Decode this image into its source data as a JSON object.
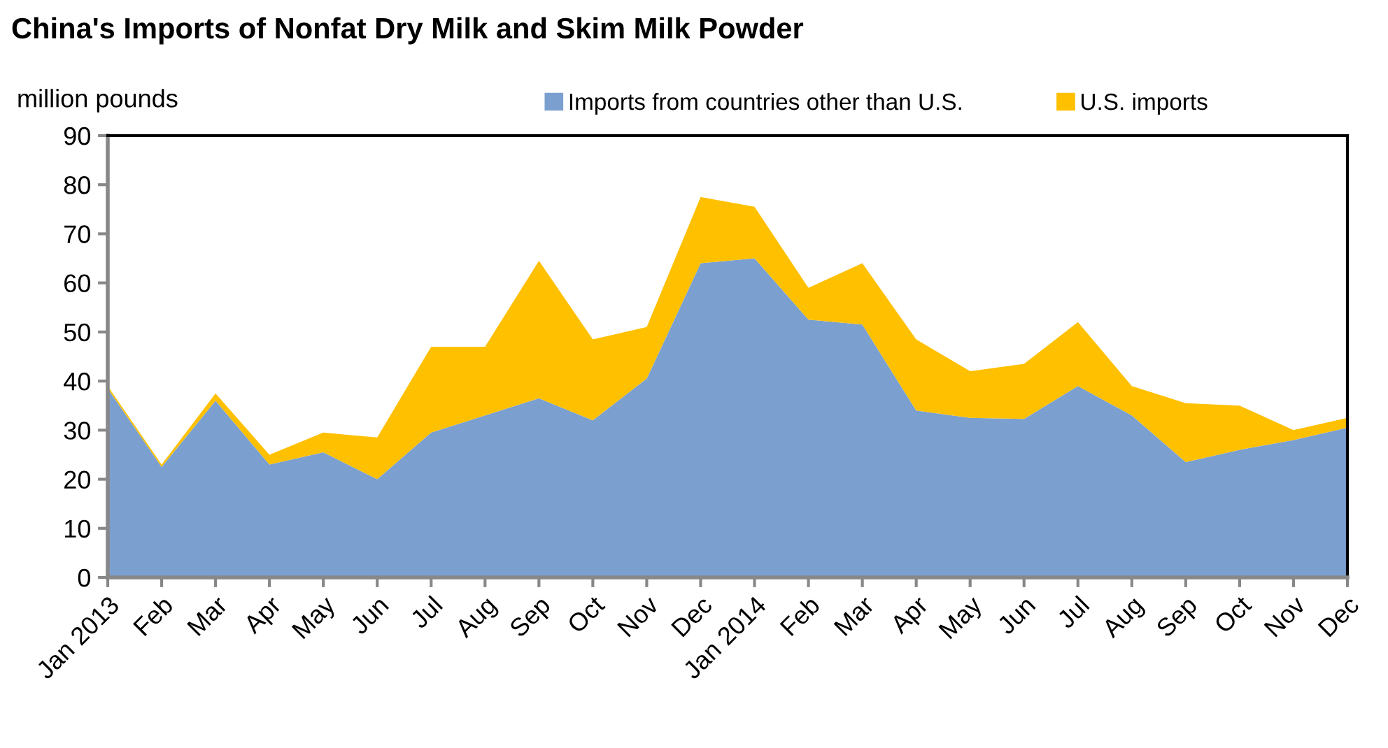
{
  "chart_data": {
    "type": "area",
    "stacked": true,
    "title": "China's Imports of Nonfat Dry Milk and Skim Milk Powder",
    "ylabel": "million pounds",
    "categories": [
      "Jan 2013",
      "Feb",
      "Mar",
      "Apr",
      "May",
      "Jun",
      "Jul",
      "Aug",
      "Sep",
      "Oct",
      "Nov",
      "Dec",
      "Jan 2014",
      "Feb",
      "Mar",
      "Apr",
      "May",
      "Jun",
      "Jul",
      "Aug",
      "Sep",
      "Oct",
      "Nov",
      "Dec"
    ],
    "series": [
      {
        "name": "Imports from countries other than U.S.",
        "color": "#7ba0d0",
        "values": [
          38.5,
          22.5,
          36,
          23,
          25.5,
          20,
          29.5,
          33,
          36.5,
          32,
          40.5,
          64,
          65,
          52.5,
          51.5,
          34,
          32.5,
          32.3,
          39,
          33,
          23.5,
          26,
          28,
          30.5
        ]
      },
      {
        "name": "U.S. imports",
        "color": "#ffc000",
        "values": [
          0.5,
          0.5,
          1.5,
          2,
          4,
          8.5,
          17.5,
          14,
          28,
          16.5,
          10.5,
          13.5,
          10.5,
          6.5,
          12.5,
          14.5,
          9.5,
          11.2,
          13,
          6,
          12,
          9,
          2,
          2
        ]
      }
    ],
    "ylim": [
      0,
      90
    ],
    "yticks": [
      0,
      10,
      20,
      30,
      40,
      50,
      60,
      70,
      80,
      90
    ],
    "grid": false,
    "legend": "top"
  }
}
